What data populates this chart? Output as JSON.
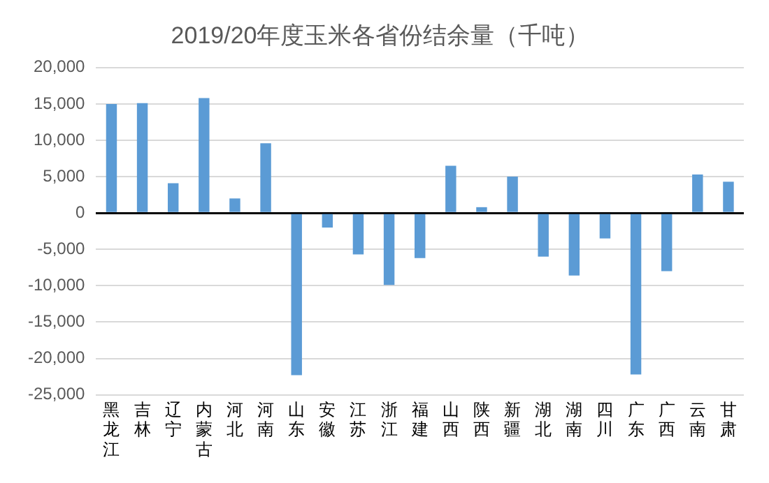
{
  "chart_data": {
    "type": "bar",
    "title": "2019/20年度玉米各省份结余量（千吨）",
    "categories": [
      "黑龙江",
      "吉林",
      "辽宁",
      "内蒙古",
      "河北",
      "河南",
      "山东",
      "安徽",
      "江苏",
      "浙江",
      "福建",
      "山西",
      "陕西",
      "新疆",
      "湖北",
      "湖南",
      "四川",
      "广东",
      "广西",
      "云南",
      "甘肃"
    ],
    "values": [
      15000,
      15100,
      4100,
      15800,
      2000,
      9600,
      -22300,
      -2000,
      -5700,
      -9900,
      -6200,
      6500,
      800,
      5000,
      -6000,
      -8600,
      -3500,
      -22200,
      -8000,
      5300,
      4300
    ],
    "color": "#5b9bd5",
    "ylim": [
      -25000,
      20000
    ],
    "yticks": [
      {
        "value": -25000,
        "label": "-25,000"
      },
      {
        "value": -20000,
        "label": "-20,000"
      },
      {
        "value": -15000,
        "label": "-15,000"
      },
      {
        "value": -10000,
        "label": "-10,000"
      },
      {
        "value": -5000,
        "label": "-5,000"
      },
      0,
      {
        "value": 5000,
        "label": "5,000"
      },
      {
        "value": 10000,
        "label": "10,000"
      },
      {
        "value": 15000,
        "label": "15,000"
      },
      {
        "value": 20000,
        "label": "20,000"
      }
    ],
    "grid": "y",
    "legend": false
  }
}
